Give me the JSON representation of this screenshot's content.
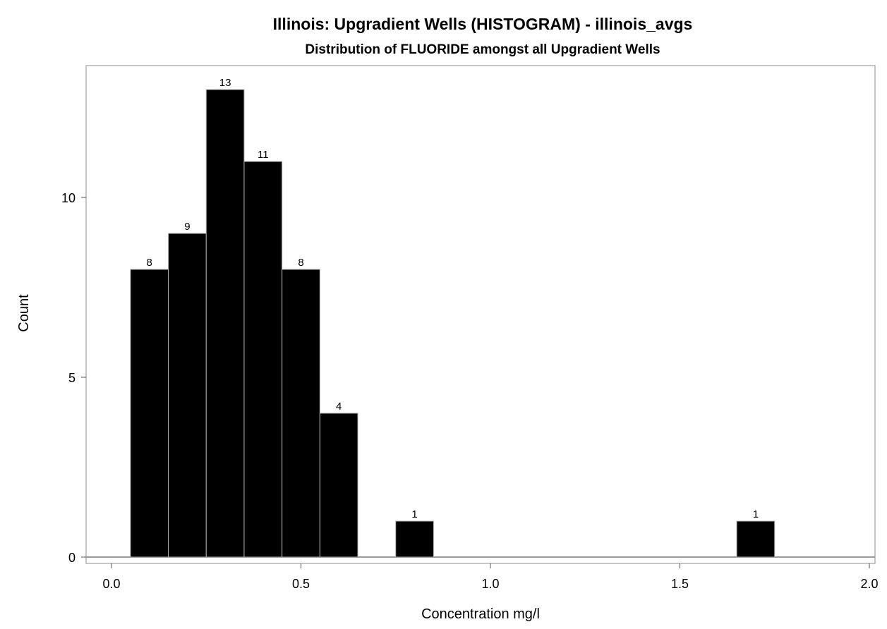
{
  "chart_data": {
    "type": "bar",
    "title": "Illinois: Upgradient Wells (HISTOGRAM) - illinois_avgs",
    "subtitle": "Distribution of FLUORIDE amongst all Upgradient Wells",
    "xlabel": "Concentration mg/l",
    "ylabel": "Count",
    "xlim": [
      -0.05,
      2.0
    ],
    "ylim": [
      0,
      13.3
    ],
    "xticks": [
      "0.0",
      "0.5",
      "1.0",
      "1.5",
      "2.0"
    ],
    "yticks": [
      "0",
      "5",
      "10"
    ],
    "bins": [
      {
        "x0": 0.05,
        "x1": 0.15,
        "count": 8
      },
      {
        "x0": 0.15,
        "x1": 0.25,
        "count": 9
      },
      {
        "x0": 0.25,
        "x1": 0.35,
        "count": 13
      },
      {
        "x0": 0.35,
        "x1": 0.45,
        "count": 11
      },
      {
        "x0": 0.45,
        "x1": 0.55,
        "count": 8
      },
      {
        "x0": 0.55,
        "x1": 0.65,
        "count": 4
      },
      {
        "x0": 0.75,
        "x1": 0.85,
        "count": 1
      },
      {
        "x0": 1.65,
        "x1": 1.75,
        "count": 1
      }
    ],
    "bar_color": "#000000",
    "bar_edge_color": "#b0b0b0",
    "grid": false,
    "legend": "none"
  }
}
